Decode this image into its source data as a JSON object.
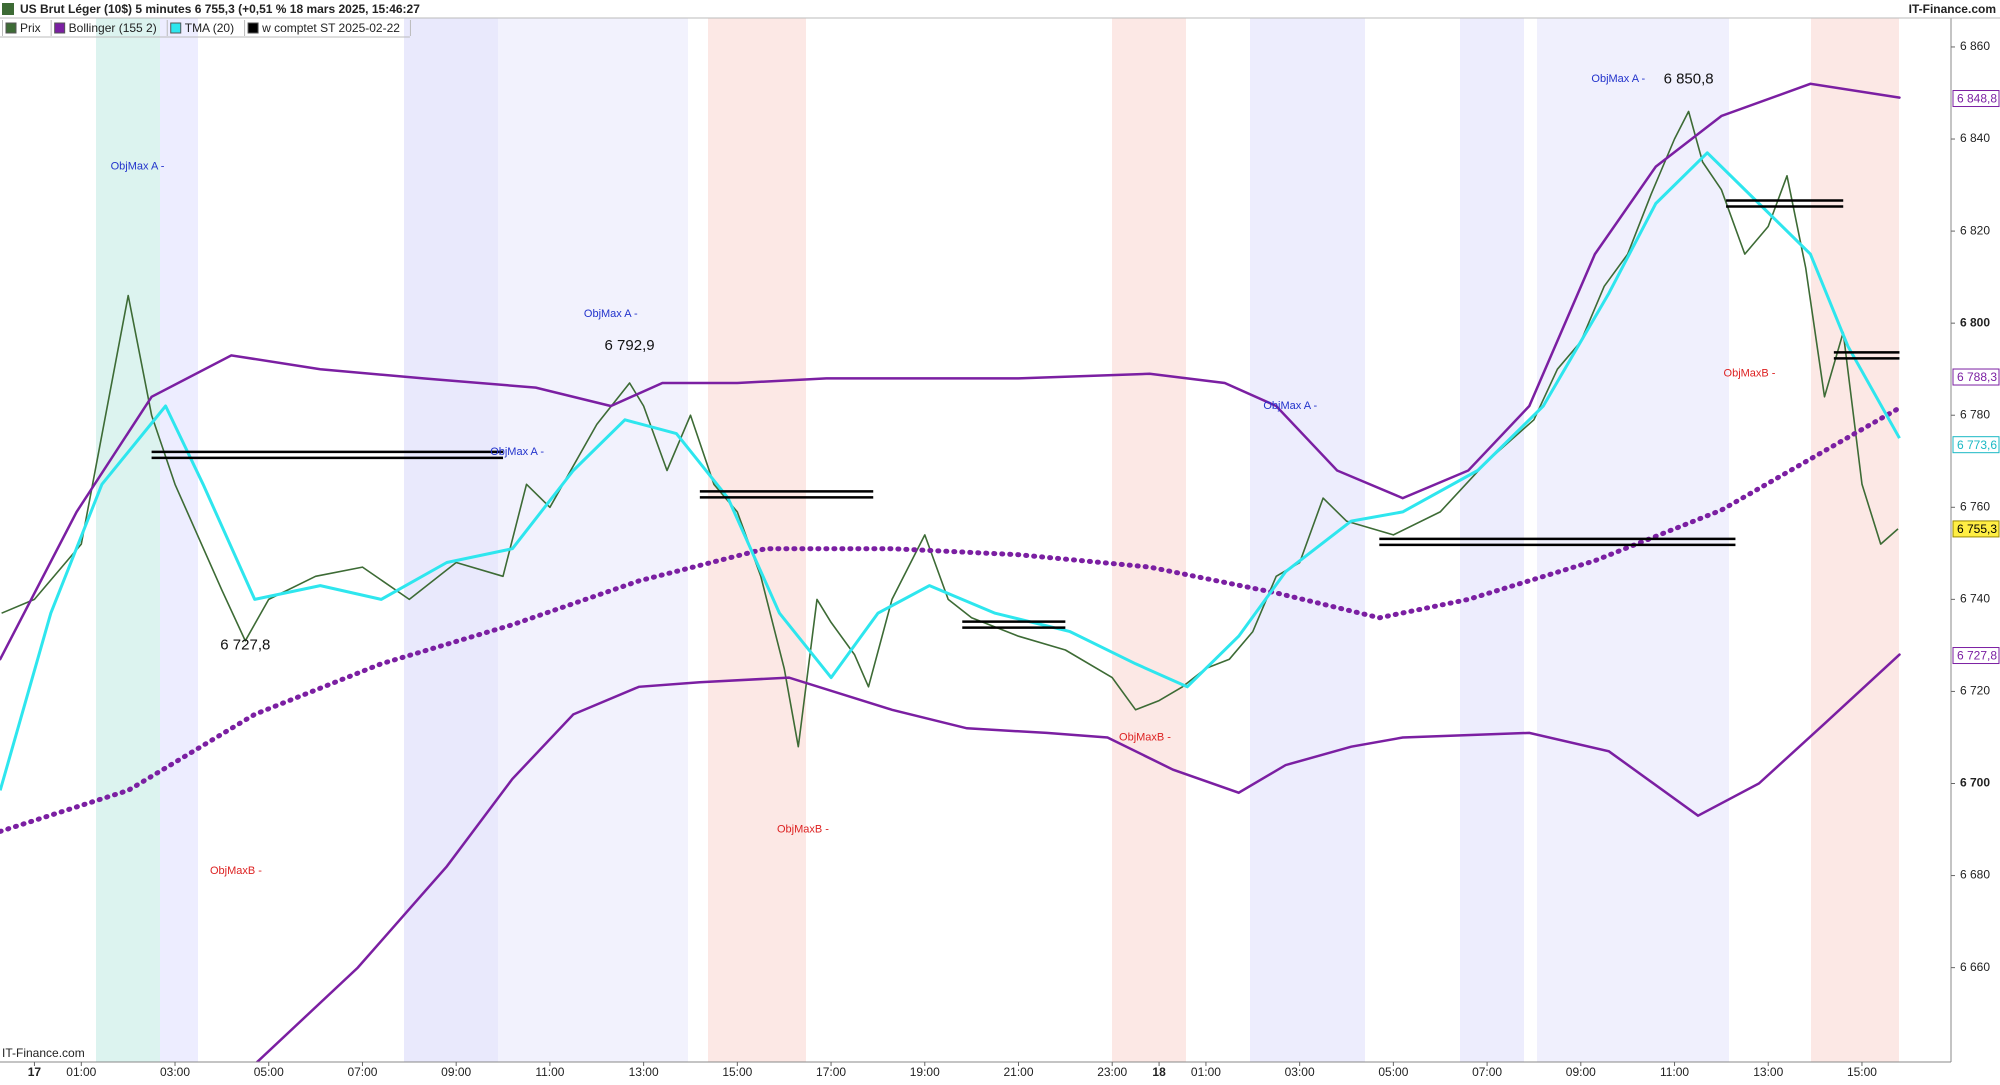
{
  "chart_data": {
    "type": "line",
    "title": "US Brut Léger (10$) 5 minutes 6 755,3 (+0,51 % 18 mars 2025, 15:46:27",
    "source": "IT-Finance.com",
    "xlim": [
      -0.735,
      40.9
    ],
    "ylim": [
      6639.5,
      6870.2
    ],
    "xticks": [
      {
        "value": 0,
        "label": "17"
      },
      {
        "value": 1,
        "label": "01:00"
      },
      {
        "value": 3,
        "label": "03:00"
      },
      {
        "value": 5,
        "label": "05:00"
      },
      {
        "value": 7,
        "label": "07:00"
      },
      {
        "value": 9,
        "label": "09:00"
      },
      {
        "value": 11,
        "label": "11:00"
      },
      {
        "value": 13,
        "label": "13:00"
      },
      {
        "value": 15,
        "label": "15:00"
      },
      {
        "value": 17,
        "label": "17:00"
      },
      {
        "value": 19,
        "label": "19:00"
      },
      {
        "value": 21,
        "label": "21:00"
      },
      {
        "value": 23,
        "label": "23:00"
      },
      {
        "value": 24,
        "label": "18"
      },
      {
        "value": 25,
        "label": "01:00"
      },
      {
        "value": 27,
        "label": "03:00"
      },
      {
        "value": 29,
        "label": "05:00"
      },
      {
        "value": 31,
        "label": "07:00"
      },
      {
        "value": 33,
        "label": "09:00"
      },
      {
        "value": 35,
        "label": "11:00"
      },
      {
        "value": 37,
        "label": "13:00"
      },
      {
        "value": 39,
        "label": "15:00"
      }
    ],
    "yticks": [
      {
        "value": 6660,
        "label": "6 660"
      },
      {
        "value": 6680,
        "label": "6 680"
      },
      {
        "value": 6700,
        "label": "6 700"
      },
      {
        "value": 6720,
        "label": "6 720"
      },
      {
        "value": 6740,
        "label": "6 740"
      },
      {
        "value": 6760,
        "label": "6 760"
      },
      {
        "value": 6780,
        "label": "6 780"
      },
      {
        "value": 6800,
        "label": "6 800"
      },
      {
        "value": 6820,
        "label": "6 820"
      },
      {
        "value": 6840,
        "label": "6 840"
      },
      {
        "value": 6860,
        "label": "6 860"
      }
    ],
    "series": [
      {
        "name": "Prix",
        "color": "#3d6b35",
        "x": [
          -0.7,
          0,
          1,
          2,
          2.5,
          3,
          4,
          4.5,
          5,
          6,
          7,
          8,
          9,
          10,
          10.5,
          11,
          12,
          12.7,
          13,
          13.5,
          14,
          14.5,
          15,
          15.5,
          16,
          16.3,
          16.7,
          17,
          17.5,
          17.8,
          18.3,
          19,
          19.5,
          20,
          21,
          22,
          23,
          23.5,
          24,
          24.5,
          25,
          25.5,
          26,
          26.5,
          27,
          27.5,
          28,
          29,
          30,
          31,
          32,
          32.5,
          33,
          33.5,
          34,
          34.5,
          35,
          35.3,
          35.6,
          36,
          36.5,
          37,
          37.4,
          37.8,
          38.2,
          38.6,
          39,
          39.4,
          39.77
        ],
        "values": [
          6737,
          6740,
          6752,
          6806,
          6780,
          6765,
          6742,
          6731,
          6740,
          6745,
          6747,
          6740,
          6748,
          6745,
          6765,
          6760,
          6778,
          6787,
          6782,
          6768,
          6780,
          6765,
          6759,
          6745,
          6725,
          6708,
          6740,
          6735,
          6728,
          6721,
          6740,
          6754,
          6740,
          6736,
          6732,
          6729,
          6723,
          6716,
          6718,
          6721,
          6725,
          6727,
          6733,
          6745,
          6748,
          6762,
          6757,
          6754,
          6759,
          6770,
          6779,
          6790,
          6796,
          6808,
          6815,
          6828,
          6840,
          6846,
          6835,
          6829,
          6815,
          6821,
          6832,
          6812,
          6784,
          6798,
          6765,
          6752,
          6755.3
        ]
      },
      {
        "name": "Bollinger (155 2)",
        "color": "#7b1fa2",
        "bands": [
          {
            "x": [
              -0.73,
              0.9,
              2.5,
              4.2,
              6.1,
              8.3,
              10.7,
              12.3,
              13.4,
              15,
              16.9,
              18.9,
              21,
              23.8,
              25.4,
              26.5,
              27.8,
              29.2,
              30.6,
              31.9,
              33.3,
              34.6,
              36,
              37.9,
              39.8
            ],
            "values": [
              6727,
              6759,
              6784,
              6793,
              6790,
              6788,
              6786,
              6782,
              6787,
              6787,
              6788,
              6788,
              6788,
              6789,
              6787,
              6782,
              6768,
              6762,
              6768,
              6782,
              6815,
              6834,
              6845,
              6852,
              6849
            ]
          },
          {
            "x": [
              -0.73,
              2,
              4.7,
              7.4,
              10.2,
              12.9,
              15.6,
              18.3,
              21,
              23.8,
              26.5,
              28.7,
              30.6,
              33.3,
              36,
              37.9,
              39.8
            ],
            "values": [
              6689.6,
              6698.5,
              6715,
              6726,
              6734.5,
              6744,
              6751,
              6751,
              6749.7,
              6747,
              6741.4,
              6736,
              6740,
              6748.4,
              6759.4,
              6770.5,
              6781.6
            ],
            "dotted": true
          },
          {
            "x": [
              4.7,
              6.9,
              8.8,
              10.2,
              11.5,
              12.9,
              14.2,
              16.1,
              18.3,
              19.9,
              21.6,
              22.9,
              24.3,
              25.7,
              26.7,
              28.1,
              29.2,
              31.9,
              33.6,
              35.5,
              36.8,
              38.2,
              39.8
            ],
            "values": [
              6639,
              6660,
              6682,
              6701,
              6715,
              6721,
              6722,
              6723,
              6716,
              6712,
              6711,
              6710,
              6703,
              6698,
              6704,
              6708,
              6710,
              6711,
              6707,
              6693,
              6700,
              6713,
              6728
            ]
          }
        ]
      },
      {
        "name": "TMA (20)",
        "color": "#2ee6ee",
        "x": [
          -0.73,
          0.35,
          1.44,
          2.8,
          3.6,
          4.7,
          6.1,
          7.4,
          8.8,
          10.2,
          11.5,
          12.6,
          13.7,
          14.8,
          15.9,
          17,
          18,
          19.1,
          20.5,
          22.1,
          23.5,
          24.6,
          25.7,
          26.7,
          28.1,
          29.2,
          30.8,
          32.2,
          33.6,
          34.6,
          35.7,
          36.8,
          37.9,
          38.7,
          39.8
        ],
        "values": [
          6698.5,
          6737,
          6765,
          6782,
          6765,
          6740,
          6743,
          6740,
          6748,
          6751,
          6768,
          6779,
          6776,
          6762,
          6737,
          6723,
          6737,
          6743,
          6737,
          6733,
          6726,
          6721,
          6732,
          6746,
          6757,
          6759,
          6768,
          6782,
          6806.5,
          6826,
          6837,
          6826,
          6815,
          6795,
          6775
        ]
      },
      {
        "name": "w comptet ST 2025-02-22",
        "color": "#000000",
        "levels": [
          {
            "x": [
              2.5,
              10
            ],
            "value": 6771.4
          },
          {
            "x": [
              14.2,
              17.9
            ],
            "value": 6762.8
          },
          {
            "x": [
              19.8,
              22
            ],
            "value": 6734.5
          },
          {
            "x": [
              28.7,
              36.3
            ],
            "value": 6752.5
          },
          {
            "x": [
              36.1,
              38.6
            ],
            "value": 6826
          },
          {
            "x": [
              38.4,
              39.8
            ],
            "value": 6793
          }
        ]
      }
    ],
    "price_tags": [
      {
        "value": 6848.8,
        "label": "6 848,8",
        "color": "#7b1fa2"
      },
      {
        "value": 6788.3,
        "label": "6 788,3",
        "color": "#7b1fa2"
      },
      {
        "value": 6773.6,
        "label": "6 773,6",
        "color": "#1ab8c4"
      },
      {
        "value": 6755.3,
        "label": "6 755,3",
        "color": "#ffee44"
      },
      {
        "value": 6727.8,
        "label": "6 727,8",
        "color": "#7b1fa2"
      }
    ],
    "price_labels": [
      {
        "x": 35.3,
        "value": 6850.8,
        "label": "6 850,8"
      },
      {
        "x": 12.7,
        "value": 6792.9,
        "label": "6 792,9"
      },
      {
        "x": 4.5,
        "value": 6727.8,
        "label": "6 727,8"
      }
    ],
    "annotations": [
      {
        "x": 2.2,
        "y": 6834,
        "text": "ObjMax A -",
        "color": "#2233cc"
      },
      {
        "x": 12.3,
        "y": 6802,
        "text": "ObjMax A -",
        "color": "#2233cc"
      },
      {
        "x": 10.3,
        "y": 6772,
        "text": "ObjMax A -",
        "color": "#2233cc"
      },
      {
        "x": 26.8,
        "y": 6782,
        "text": "ObjMax A -",
        "color": "#2233cc"
      },
      {
        "x": 33.8,
        "y": 6853,
        "text": "ObjMax A -",
        "color": "#2233cc"
      },
      {
        "x": 4.3,
        "y": 6681,
        "text": "ObjMaxB -",
        "color": "#dd2222"
      },
      {
        "x": 16.4,
        "y": 6690,
        "text": "ObjMaxB -",
        "color": "#dd2222"
      },
      {
        "x": 23.7,
        "y": 6710,
        "text": "ObjMaxB -",
        "color": "#dd2222"
      },
      {
        "x": 36.6,
        "y": 6789,
        "text": "ObjMaxB -",
        "color": "#dd2222"
      }
    ]
  }
}
